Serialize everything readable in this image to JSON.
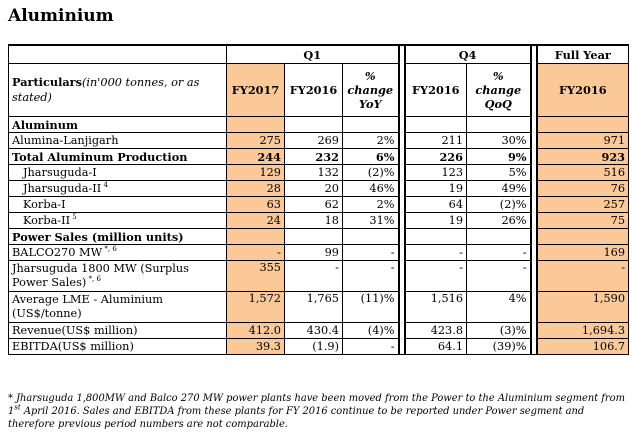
{
  "title": "Aluminium",
  "header": {
    "q1": "Q1",
    "q4": "Q4",
    "full_year": "Full Year",
    "particulars_bold": "Particulars",
    "particulars_italic": "(in'000 tonnes, or as stated)",
    "fy2017": "FY2017",
    "fy2016": "FY2016",
    "pct_yoy": "% change YoY",
    "q4_fy2016": "FY2016",
    "pct_qoq": "% change QoQ",
    "full_fy2016": "FY2016"
  },
  "rows": [
    {
      "label": "Aluminum",
      "type": "section",
      "sup": "",
      "v": [
        "",
        "",
        "",
        "",
        "",
        ""
      ]
    },
    {
      "label": "Alumina-Lanjigarh",
      "type": "normal",
      "sup": "",
      "v": [
        "275",
        "269",
        "2%",
        "211",
        "30%",
        "971"
      ]
    },
    {
      "label": "Total Aluminum Production",
      "type": "bold",
      "sup": "",
      "v": [
        "244",
        "232",
        "6%",
        "226",
        "9%",
        "923"
      ]
    },
    {
      "label": "Jharsuguda-I",
      "type": "indent",
      "sup": "",
      "v": [
        "129",
        "132",
        "(2)%",
        "123",
        "5%",
        "516"
      ]
    },
    {
      "label": "Jharsuguda-II",
      "type": "indent",
      "sup": "4",
      "v": [
        "28",
        "20",
        "46%",
        "19",
        "49%",
        "76"
      ]
    },
    {
      "label": "Korba-I",
      "type": "indent",
      "sup": "",
      "v": [
        "63",
        "62",
        "2%",
        "64",
        "(2)%",
        "257"
      ]
    },
    {
      "label": "Korba-II",
      "type": "indent",
      "sup": "5",
      "v": [
        "24",
        "18",
        "31%",
        "19",
        "26%",
        "75"
      ]
    },
    {
      "label": "Power Sales (million units)",
      "type": "section",
      "sup": "",
      "v": [
        "",
        "",
        "",
        "",
        "",
        ""
      ]
    },
    {
      "label": "BALCO270 MW",
      "type": "normal",
      "sup": "*, 6",
      "v": [
        "-",
        "99",
        "-",
        "-",
        "-",
        "169"
      ]
    },
    {
      "label": "Jharsuguda 1800 MW (Surplus Power Sales)",
      "type": "normal2",
      "sup": "*, 6",
      "v": [
        "355",
        "-",
        "-",
        "-",
        "-",
        "-"
      ]
    },
    {
      "label": "Average LME - Aluminium (US$/tonne)",
      "type": "normal2",
      "sup": "",
      "v": [
        "1,572",
        "1,765",
        "(11)%",
        "1,516",
        "4%",
        "1,590"
      ]
    },
    {
      "label": "Revenue(US$ million)",
      "type": "normal",
      "sup": "",
      "v": [
        "412.0",
        "430.4",
        "(4)%",
        "423.8",
        "(3)%",
        "1,694.3"
      ]
    },
    {
      "label": "EBITDA(US$ million)",
      "type": "normal",
      "sup": "",
      "v": [
        "39.3",
        "(1.9)",
        "-",
        "64.1",
        "(39)%",
        "106.7"
      ]
    }
  ],
  "footnote": "* Jharsuguda 1,800MW and Balco 270 MW power plants have been moved from the Power to the Aluminium segment from 1st April 2016. Sales and EBITDA from these plants for FY 2016 continue to be reported under Power segment and therefore previous period numbers are not comparable.",
  "colors": {
    "highlight": "#fbc997"
  }
}
